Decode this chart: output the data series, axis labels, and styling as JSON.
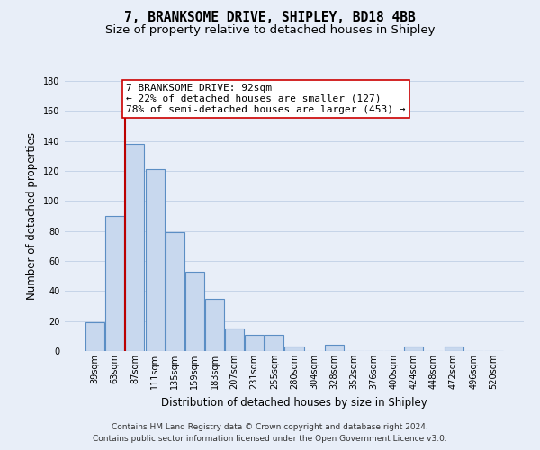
{
  "title": "7, BRANKSOME DRIVE, SHIPLEY, BD18 4BB",
  "subtitle": "Size of property relative to detached houses in Shipley",
  "xlabel": "Distribution of detached houses by size in Shipley",
  "ylabel": "Number of detached properties",
  "bar_labels": [
    "39sqm",
    "63sqm",
    "87sqm",
    "111sqm",
    "135sqm",
    "159sqm",
    "183sqm",
    "207sqm",
    "231sqm",
    "255sqm",
    "280sqm",
    "304sqm",
    "328sqm",
    "352sqm",
    "376sqm",
    "400sqm",
    "424sqm",
    "448sqm",
    "472sqm",
    "496sqm",
    "520sqm"
  ],
  "bar_values": [
    19,
    90,
    138,
    121,
    79,
    53,
    35,
    15,
    11,
    11,
    3,
    0,
    4,
    0,
    0,
    0,
    3,
    0,
    3,
    0,
    0
  ],
  "bar_color": "#c8d8ee",
  "bar_edge_color": "#5b8ec4",
  "bar_edge_width": 0.8,
  "grid_color": "#c5d4e8",
  "background_color": "#e8eef8",
  "property_line_x": 1.5,
  "property_line_color": "#bb0000",
  "annotation_text": "7 BRANKSOME DRIVE: 92sqm\n← 22% of detached houses are smaller (127)\n78% of semi-detached houses are larger (453) →",
  "annotation_box_facecolor": "#ffffff",
  "annotation_box_edgecolor": "#cc0000",
  "ylim": [
    0,
    180
  ],
  "yticks": [
    0,
    20,
    40,
    60,
    80,
    100,
    120,
    140,
    160,
    180
  ],
  "footer_text": "Contains HM Land Registry data © Crown copyright and database right 2024.\nContains public sector information licensed under the Open Government Licence v3.0.",
  "title_fontsize": 10.5,
  "subtitle_fontsize": 9.5,
  "xlabel_fontsize": 8.5,
  "ylabel_fontsize": 8.5,
  "tick_fontsize": 7,
  "annotation_fontsize": 8,
  "footer_fontsize": 6.5
}
